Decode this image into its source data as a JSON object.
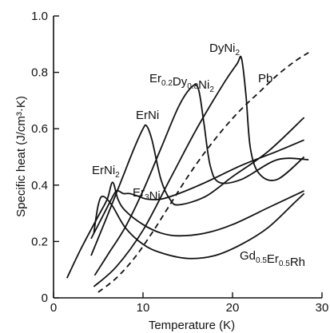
{
  "chart_data": {
    "type": "line",
    "xlabel": "Temperature (K)",
    "ylabel": "Specific heat (J/cm³·K)",
    "xlim": [
      0,
      30
    ],
    "ylim": [
      0,
      1.0
    ],
    "x_ticks": [
      "0",
      "10",
      "20",
      "30"
    ],
    "y_ticks": [
      "0",
      "0.2",
      "0.4",
      "0.6",
      "0.8",
      "1.0"
    ],
    "grid": false,
    "legend": "none (direct labels)",
    "series": [
      {
        "name": "ErNi₂",
        "label_parts": [
          [
            "ErNi",
            ""
          ],
          [
            "2",
            "sub"
          ]
        ],
        "style": "solid",
        "points": [
          [
            1.5,
            0.07
          ],
          [
            3,
            0.17
          ],
          [
            5,
            0.29
          ],
          [
            6,
            0.35
          ],
          [
            6.6,
            0.41
          ],
          [
            7.2,
            0.35
          ],
          [
            8,
            0.31
          ],
          [
            10,
            0.26
          ],
          [
            12,
            0.23
          ],
          [
            14,
            0.22
          ],
          [
            17,
            0.23
          ],
          [
            20,
            0.26
          ],
          [
            24,
            0.32
          ],
          [
            28,
            0.38
          ]
        ]
      },
      {
        "name": "Er₃Ni",
        "label_parts": [
          [
            "Er",
            ""
          ],
          [
            "3",
            "sub"
          ],
          [
            "Ni",
            ""
          ]
        ],
        "style": "solid",
        "points": [
          [
            4.2,
            0.21
          ],
          [
            5.5,
            0.29
          ],
          [
            6.8,
            0.37
          ],
          [
            7.2,
            0.38
          ],
          [
            7.8,
            0.37
          ],
          [
            8.5,
            0.37
          ],
          [
            9.5,
            0.36
          ],
          [
            10.5,
            0.35
          ],
          [
            12,
            0.35
          ],
          [
            14,
            0.37
          ],
          [
            17,
            0.41
          ],
          [
            21,
            0.47
          ],
          [
            25,
            0.52
          ],
          [
            28,
            0.56
          ]
        ]
      },
      {
        "name": "ErNi",
        "label_parts": [
          [
            "ErNi",
            ""
          ]
        ],
        "style": "solid",
        "points": [
          [
            4.2,
            0.15
          ],
          [
            6,
            0.29
          ],
          [
            7.5,
            0.41
          ],
          [
            9,
            0.53
          ],
          [
            10,
            0.6
          ],
          [
            10.4,
            0.61
          ],
          [
            11,
            0.56
          ],
          [
            12,
            0.42
          ],
          [
            13,
            0.35
          ],
          [
            14,
            0.33
          ],
          [
            17,
            0.36
          ],
          [
            20,
            0.43
          ],
          [
            24,
            0.52
          ],
          [
            28,
            0.64
          ]
        ]
      },
      {
        "name": "Er₀.₂Dy₀.₈Ni₂",
        "label_parts": [
          [
            "Er",
            ""
          ],
          [
            "0.2",
            "sub"
          ],
          [
            "Dy",
            ""
          ],
          [
            "0.8",
            "sub"
          ],
          [
            "Ni",
            ""
          ],
          [
            "2",
            "sub"
          ]
        ],
        "style": "solid",
        "points": [
          [
            4.6,
            0.08
          ],
          [
            6,
            0.15
          ],
          [
            8,
            0.25
          ],
          [
            10,
            0.38
          ],
          [
            12,
            0.53
          ],
          [
            14,
            0.68
          ],
          [
            15.5,
            0.75
          ],
          [
            16.2,
            0.74
          ],
          [
            16.8,
            0.62
          ],
          [
            17.5,
            0.47
          ],
          [
            18.5,
            0.41
          ],
          [
            21,
            0.42
          ],
          [
            25,
            0.49
          ],
          [
            28.5,
            0.49
          ]
        ]
      },
      {
        "name": "DyNi₂",
        "label_parts": [
          [
            "DyNi",
            ""
          ],
          [
            "2",
            "sub"
          ]
        ],
        "style": "solid",
        "points": [
          [
            4.5,
            0.04
          ],
          [
            7,
            0.11
          ],
          [
            10,
            0.24
          ],
          [
            13,
            0.42
          ],
          [
            16,
            0.6
          ],
          [
            19,
            0.76
          ],
          [
            20.5,
            0.83
          ],
          [
            21,
            0.85
          ],
          [
            21.5,
            0.72
          ],
          [
            22,
            0.53
          ],
          [
            23,
            0.44
          ],
          [
            25,
            0.42
          ],
          [
            28,
            0.5
          ]
        ]
      },
      {
        "name": "Pb",
        "label_parts": [
          [
            "Pb",
            ""
          ]
        ],
        "style": "dashed",
        "points": [
          [
            5,
            0.02
          ],
          [
            7,
            0.07
          ],
          [
            9,
            0.14
          ],
          [
            11,
            0.23
          ],
          [
            13,
            0.33
          ],
          [
            15,
            0.43
          ],
          [
            17,
            0.52
          ],
          [
            19,
            0.6
          ],
          [
            21,
            0.67
          ],
          [
            23,
            0.73
          ],
          [
            25,
            0.79
          ],
          [
            27,
            0.84
          ],
          [
            28.5,
            0.87
          ]
        ]
      },
      {
        "name": "Gd₀.₅Er₀.₅Rh",
        "label_parts": [
          [
            "Gd",
            ""
          ],
          [
            "0.5",
            "sub"
          ],
          [
            "Er",
            ""
          ],
          [
            "0.5",
            "sub"
          ],
          [
            "Rh",
            ""
          ]
        ],
        "style": "solid",
        "points": [
          [
            4.5,
            0.23
          ],
          [
            5,
            0.33
          ],
          [
            5.5,
            0.36
          ],
          [
            6.5,
            0.33
          ],
          [
            8,
            0.25
          ],
          [
            10,
            0.19
          ],
          [
            12,
            0.16
          ],
          [
            15,
            0.14
          ],
          [
            18,
            0.15
          ],
          [
            21,
            0.19
          ],
          [
            24,
            0.25
          ],
          [
            27,
            0.34
          ],
          [
            28,
            0.37
          ]
        ]
      }
    ]
  }
}
